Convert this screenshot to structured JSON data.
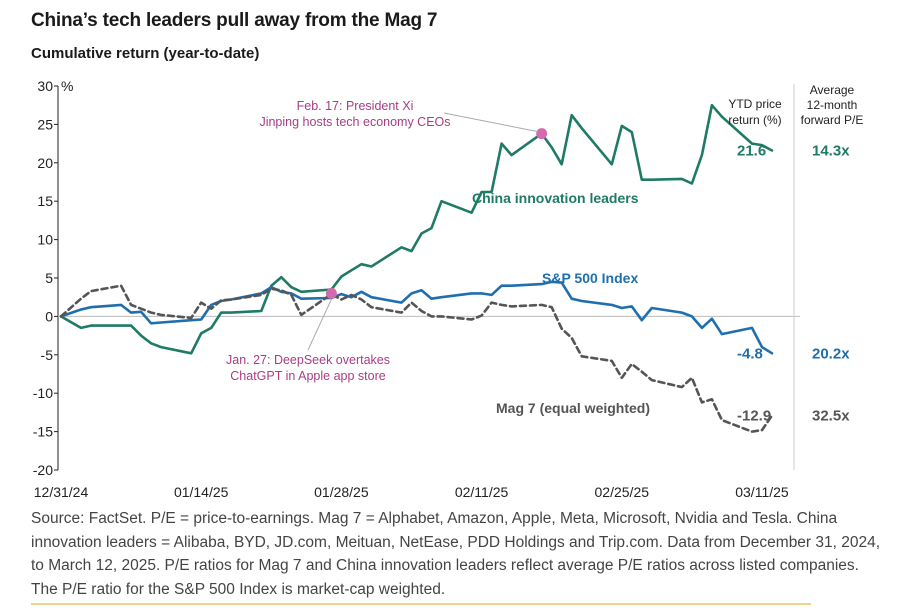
{
  "title": "China’s tech leaders pull away from the Mag 7",
  "subtitle": "Cumulative return (year-to-date)",
  "source": "Source: FactSet. P/E = price-to-earnings. Mag 7 = Alphabet, Amazon, Apple, Meta, Microsoft, Nvidia and Tesla. China innovation leaders = Alibaba, BYD, JD.com, Meituan, NetEase, PDD Holdings and Trip.com. Data from December 31, 2024, to March 12, 2025. P/E ratios for Mag 7 and China innovation leaders reflect average P/E ratios across listed companies. The P/E ratio for the S&P 500 Index is market-cap weighted.",
  "colors": {
    "china": "#1f7a66",
    "sp500": "#1f6fae",
    "mag7": "#555555",
    "annotation": "#a83c86",
    "marker": "#d36aad"
  },
  "chart_data": {
    "type": "line",
    "y_unit": "%",
    "ylim": [
      -20,
      30
    ],
    "yticks": [
      30,
      25,
      20,
      15,
      10,
      5,
      0,
      -5,
      -10,
      -15,
      -20
    ],
    "xlim": [
      "2024-12-31",
      "2025-03-13"
    ],
    "xtick_labels": [
      "12/31/24",
      "01/14/25",
      "01/28/25",
      "02/11/25",
      "02/25/25",
      "03/11/25"
    ],
    "xtick_dates": [
      "2024-12-31",
      "2025-01-14",
      "2025-01-28",
      "2025-02-11",
      "2025-02-25",
      "2025-03-11"
    ],
    "grid": false,
    "series": [
      {
        "name": "China innovation leaders",
        "color_key": "china",
        "dash": "solid",
        "end_label": "21.6",
        "pe": "14.3x",
        "x": [
          "2024-12-31",
          "2025-01-02",
          "2025-01-03",
          "2025-01-06",
          "2025-01-07",
          "2025-01-08",
          "2025-01-09",
          "2025-01-10",
          "2025-01-13",
          "2025-01-14",
          "2025-01-15",
          "2025-01-16",
          "2025-01-17",
          "2025-01-20",
          "2025-01-21",
          "2025-01-22",
          "2025-01-23",
          "2025-01-24",
          "2025-01-27",
          "2025-01-28",
          "2025-01-29",
          "2025-01-30",
          "2025-01-31",
          "2025-02-03",
          "2025-02-04",
          "2025-02-05",
          "2025-02-06",
          "2025-02-07",
          "2025-02-10",
          "2025-02-11",
          "2025-02-12",
          "2025-02-13",
          "2025-02-14",
          "2025-02-17",
          "2025-02-18",
          "2025-02-19",
          "2025-02-20",
          "2025-02-21",
          "2025-02-24",
          "2025-02-25",
          "2025-02-26",
          "2025-02-27",
          "2025-02-28",
          "2025-03-03",
          "2025-03-04",
          "2025-03-05",
          "2025-03-06",
          "2025-03-07",
          "2025-03-10",
          "2025-03-11",
          "2025-03-12"
        ],
        "y": [
          0.0,
          -1.5,
          -1.2,
          -1.2,
          -1.2,
          -2.5,
          -3.5,
          -4.0,
          -4.8,
          -2.2,
          -1.5,
          0.5,
          0.5,
          0.7,
          4.0,
          5.1,
          3.8,
          3.2,
          3.5,
          5.2,
          6.0,
          6.8,
          6.5,
          9.0,
          8.5,
          10.8,
          11.5,
          15.0,
          13.5,
          16.2,
          16.2,
          22.5,
          21.0,
          23.8,
          22.0,
          19.8,
          26.2,
          24.5,
          19.8,
          24.8,
          24.0,
          17.8,
          17.8,
          17.9,
          17.3,
          21.0,
          27.5,
          26.0,
          22.5,
          22.3,
          21.6
        ]
      },
      {
        "name": "S&P 500 Index",
        "color_key": "sp500",
        "dash": "solid",
        "end_label": "-4.8",
        "pe": "20.2x",
        "x": [
          "2024-12-31",
          "2025-01-02",
          "2025-01-03",
          "2025-01-06",
          "2025-01-07",
          "2025-01-08",
          "2025-01-09",
          "2025-01-10",
          "2025-01-13",
          "2025-01-14",
          "2025-01-15",
          "2025-01-16",
          "2025-01-17",
          "2025-01-20",
          "2025-01-21",
          "2025-01-22",
          "2025-01-23",
          "2025-01-24",
          "2025-01-27",
          "2025-01-28",
          "2025-01-29",
          "2025-01-30",
          "2025-01-31",
          "2025-02-03",
          "2025-02-04",
          "2025-02-05",
          "2025-02-06",
          "2025-02-07",
          "2025-02-10",
          "2025-02-11",
          "2025-02-12",
          "2025-02-13",
          "2025-02-14",
          "2025-02-17",
          "2025-02-18",
          "2025-02-19",
          "2025-02-20",
          "2025-02-21",
          "2025-02-24",
          "2025-02-25",
          "2025-02-26",
          "2025-02-27",
          "2025-02-28",
          "2025-03-03",
          "2025-03-04",
          "2025-03-05",
          "2025-03-06",
          "2025-03-07",
          "2025-03-10",
          "2025-03-11",
          "2025-03-12"
        ],
        "y": [
          0.0,
          0.9,
          1.2,
          1.5,
          0.5,
          0.6,
          -0.9,
          -0.8,
          -0.5,
          -0.4,
          1.5,
          2.0,
          2.2,
          3.0,
          3.8,
          3.2,
          3.0,
          2.3,
          2.4,
          2.9,
          2.5,
          3.2,
          2.5,
          1.8,
          3.0,
          3.4,
          2.3,
          2.5,
          3.0,
          3.0,
          2.8,
          4.0,
          4.0,
          4.2,
          4.5,
          4.4,
          2.3,
          2.0,
          1.5,
          1.1,
          1.3,
          -0.5,
          1.1,
          0.5,
          0.0,
          -1.5,
          -0.3,
          -2.3,
          -1.5,
          -4.0,
          -4.8
        ]
      },
      {
        "name": "Mag 7 (equal weighted)",
        "color_key": "mag7",
        "dash": "dashed",
        "end_label": "-12.9",
        "pe": "32.5x",
        "x": [
          "2024-12-31",
          "2025-01-02",
          "2025-01-03",
          "2025-01-06",
          "2025-01-07",
          "2025-01-08",
          "2025-01-09",
          "2025-01-10",
          "2025-01-13",
          "2025-01-14",
          "2025-01-15",
          "2025-01-16",
          "2025-01-17",
          "2025-01-20",
          "2025-01-21",
          "2025-01-22",
          "2025-01-23",
          "2025-01-24",
          "2025-01-27",
          "2025-01-28",
          "2025-01-29",
          "2025-01-30",
          "2025-01-31",
          "2025-02-03",
          "2025-02-04",
          "2025-02-05",
          "2025-02-06",
          "2025-02-07",
          "2025-02-10",
          "2025-02-11",
          "2025-02-12",
          "2025-02-13",
          "2025-02-14",
          "2025-02-17",
          "2025-02-18",
          "2025-02-19",
          "2025-02-20",
          "2025-02-21",
          "2025-02-24",
          "2025-02-25",
          "2025-02-26",
          "2025-02-27",
          "2025-02-28",
          "2025-03-03",
          "2025-03-04",
          "2025-03-05",
          "2025-03-06",
          "2025-03-07",
          "2025-03-10",
          "2025-03-11",
          "2025-03-12"
        ],
        "y": [
          0.0,
          2.3,
          3.3,
          4.0,
          1.5,
          1.0,
          0.5,
          0.2,
          -0.2,
          1.8,
          1.0,
          2.1,
          2.2,
          2.8,
          3.6,
          3.4,
          2.8,
          0.2,
          2.9,
          2.2,
          2.8,
          2.2,
          1.2,
          0.5,
          1.8,
          0.7,
          0.0,
          0.0,
          -0.4,
          0.1,
          1.8,
          1.5,
          1.3,
          1.5,
          1.2,
          -1.6,
          -2.8,
          -5.2,
          -5.8,
          -8.0,
          -6.2,
          -7.2,
          -8.3,
          -9.2,
          -8.0,
          -11.2,
          -10.8,
          -13.5,
          -15.0,
          -14.8,
          -12.9
        ]
      }
    ],
    "column_headers": {
      "ytd": "YTD price return (%)",
      "pe": "Average 12-month forward P/E"
    },
    "annotations": [
      {
        "text": "Feb. 17: President Xi Jinping hosts tech economy CEOs",
        "x": "2025-02-17",
        "y": 23.8
      },
      {
        "text": "Jan. 27: DeepSeek overtakes ChatGPT in Apple app store",
        "x": "2025-01-27",
        "y": 3.0
      }
    ]
  }
}
